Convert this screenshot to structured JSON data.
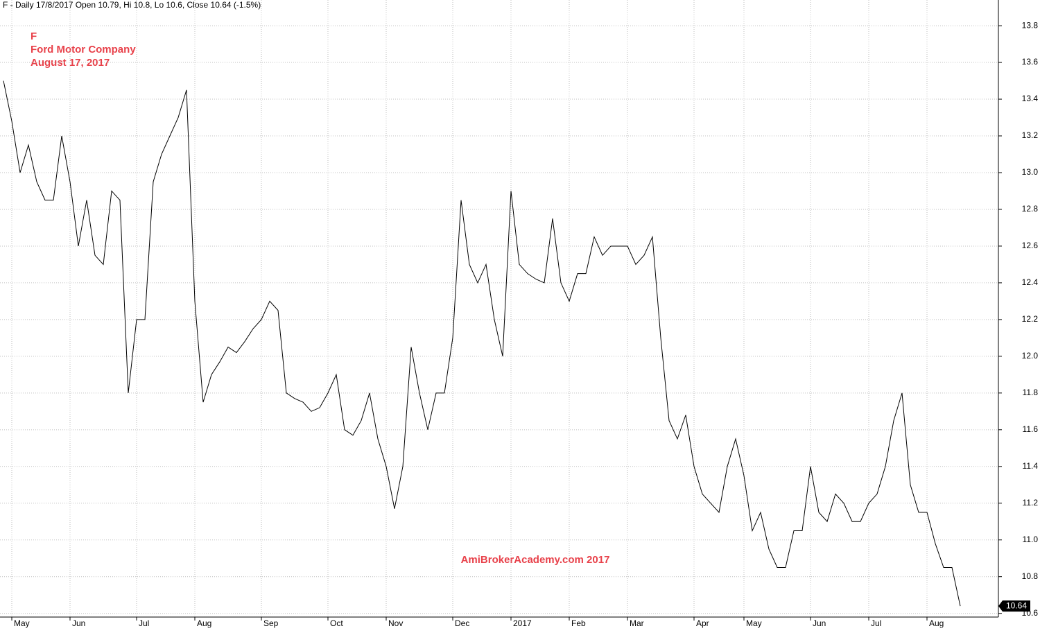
{
  "chart_data": {
    "type": "line",
    "title": "F - Daily 17/8/2017 Open 10.79, Hi 10.8, Lo 10.6, Close 10.64 (-1.5%)",
    "annotations": [
      "F",
      "Ford Motor Company",
      "August 17, 2017"
    ],
    "watermark": "AmiBrokerAcademy.com  2017",
    "categories": [
      null,
      "May",
      null,
      null,
      null,
      null,
      null,
      null,
      "Jun",
      null,
      null,
      null,
      null,
      null,
      null,
      null,
      "Jul",
      null,
      null,
      null,
      null,
      null,
      null,
      "Aug",
      null,
      null,
      null,
      null,
      null,
      null,
      null,
      "Sep",
      null,
      null,
      null,
      null,
      null,
      null,
      null,
      "Oct",
      null,
      null,
      null,
      null,
      null,
      null,
      "Nov",
      null,
      null,
      null,
      null,
      null,
      null,
      null,
      "Dec",
      null,
      null,
      null,
      null,
      null,
      null,
      "2017",
      null,
      null,
      null,
      null,
      null,
      null,
      "Feb",
      null,
      null,
      null,
      null,
      null,
      null,
      "Mar",
      null,
      null,
      null,
      null,
      null,
      null,
      null,
      "Apr",
      null,
      null,
      null,
      null,
      null,
      "May",
      null,
      null,
      null,
      null,
      null,
      null,
      null,
      "Jun",
      null,
      null,
      null,
      null,
      null,
      null,
      "Jul",
      null,
      null,
      null,
      null,
      null,
      null,
      "Aug",
      null,
      null,
      null,
      null
    ],
    "values": [
      13.5,
      13.28,
      13.0,
      13.15,
      12.95,
      12.85,
      12.85,
      13.2,
      12.95,
      12.6,
      12.85,
      12.55,
      12.5,
      12.9,
      12.85,
      11.8,
      12.2,
      12.2,
      12.95,
      13.1,
      13.2,
      13.3,
      13.45,
      12.3,
      11.75,
      11.9,
      11.97,
      12.05,
      12.02,
      12.08,
      12.15,
      12.2,
      12.3,
      12.25,
      11.8,
      11.77,
      11.75,
      11.7,
      11.72,
      11.8,
      11.9,
      11.6,
      11.57,
      11.65,
      11.8,
      11.55,
      11.4,
      11.17,
      11.4,
      12.05,
      11.8,
      11.6,
      11.8,
      11.8,
      12.1,
      12.85,
      12.5,
      12.4,
      12.5,
      12.2,
      12.0,
      12.9,
      12.5,
      12.45,
      12.42,
      12.4,
      12.75,
      12.4,
      12.3,
      12.45,
      12.45,
      12.65,
      12.55,
      12.6,
      12.6,
      12.6,
      12.5,
      12.55,
      12.65,
      12.1,
      11.65,
      11.55,
      11.68,
      11.4,
      11.25,
      11.2,
      11.15,
      11.4,
      11.55,
      11.35,
      11.05,
      11.15,
      10.95,
      10.85,
      10.85,
      11.05,
      11.05,
      11.4,
      11.15,
      11.1,
      11.25,
      11.2,
      11.1,
      11.1,
      11.2,
      11.25,
      11.4,
      11.65,
      11.8,
      11.3,
      11.15,
      11.15,
      10.98,
      10.85,
      10.85,
      10.64
    ],
    "color": "#000000",
    "ylim": [
      10.58,
      13.94
    ],
    "yticks": [
      10.6,
      10.8,
      {
        "value": 11,
        "label": "11.0"
      },
      11.2,
      11.4,
      11.6,
      11.8,
      {
        "value": 12,
        "label": "12.0"
      },
      12.2,
      12.4,
      12.6,
      12.8,
      {
        "value": 13,
        "label": "13.0"
      },
      13.2,
      13.4,
      13.6,
      13.8
    ],
    "grid": true
  }
}
